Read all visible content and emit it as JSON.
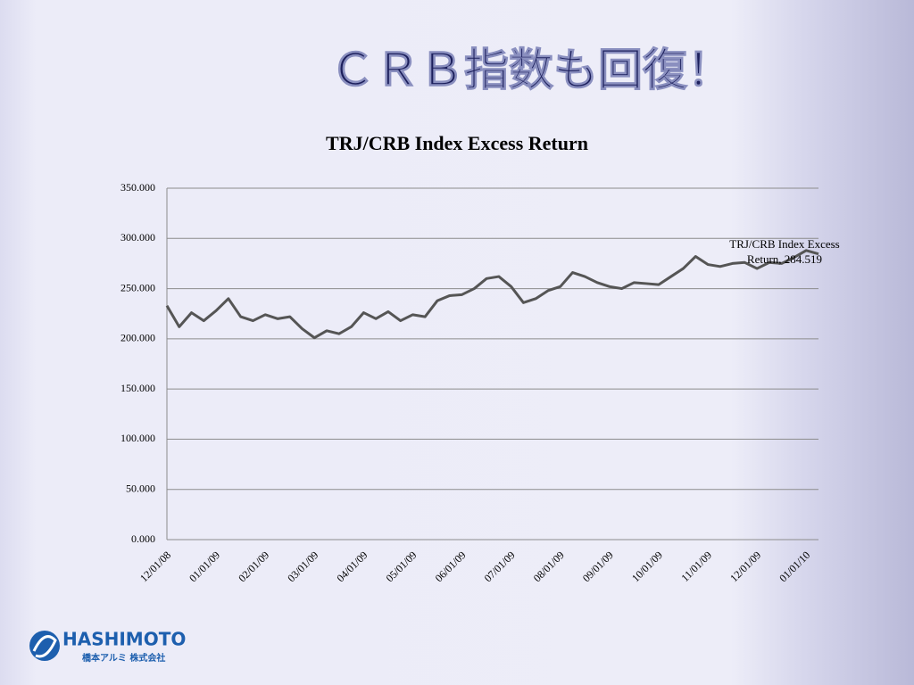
{
  "slide_title": "ＣＲＢ指数も回復！",
  "logo": {
    "name": "HASHIMOTO",
    "subtitle": "橋本アルミ 株式会社"
  },
  "chart_data": {
    "type": "line",
    "title": "TRJ/CRB Index Excess Return",
    "categories": [
      "12/01/08",
      null,
      null,
      null,
      "01/01/09",
      null,
      null,
      null,
      "02/01/09",
      null,
      null,
      null,
      "03/01/09",
      null,
      null,
      null,
      "04/01/09",
      null,
      null,
      null,
      "05/01/09",
      null,
      null,
      null,
      "06/01/09",
      null,
      null,
      null,
      "07/01/09",
      null,
      null,
      null,
      "08/01/09",
      null,
      null,
      null,
      "09/01/09",
      null,
      null,
      null,
      "10/01/09",
      null,
      null,
      null,
      "11/01/09",
      null,
      null,
      null,
      "12/01/09",
      null,
      null,
      null,
      "01/01/10",
      null
    ],
    "values": [
      233,
      212,
      226,
      218,
      228,
      240,
      222,
      218,
      224,
      220,
      222,
      210,
      201,
      208,
      205,
      212,
      226,
      220,
      227,
      218,
      224,
      222,
      238,
      243,
      244,
      250,
      260,
      262,
      252,
      236,
      240,
      248,
      252,
      266,
      262,
      256,
      252,
      250,
      256,
      255,
      254,
      262,
      270,
      282,
      274,
      272,
      275,
      276,
      270,
      276,
      275,
      281,
      288,
      284.519
    ],
    "color": "#555555",
    "annotation": "TRJ/CRB Index Excess Return, 284.519",
    "ylim": [
      0,
      350
    ],
    "yticks": [
      {
        "value": 0,
        "label": "0.000"
      },
      {
        "value": 50,
        "label": "50.000"
      },
      {
        "value": 100,
        "label": "100.000"
      },
      {
        "value": 150,
        "label": "150.000"
      },
      {
        "value": 200,
        "label": "200.000"
      },
      {
        "value": 250,
        "label": "250.000"
      },
      {
        "value": 300,
        "label": "300.000"
      },
      {
        "value": 350,
        "label": "350.000"
      }
    ],
    "grid": true
  }
}
